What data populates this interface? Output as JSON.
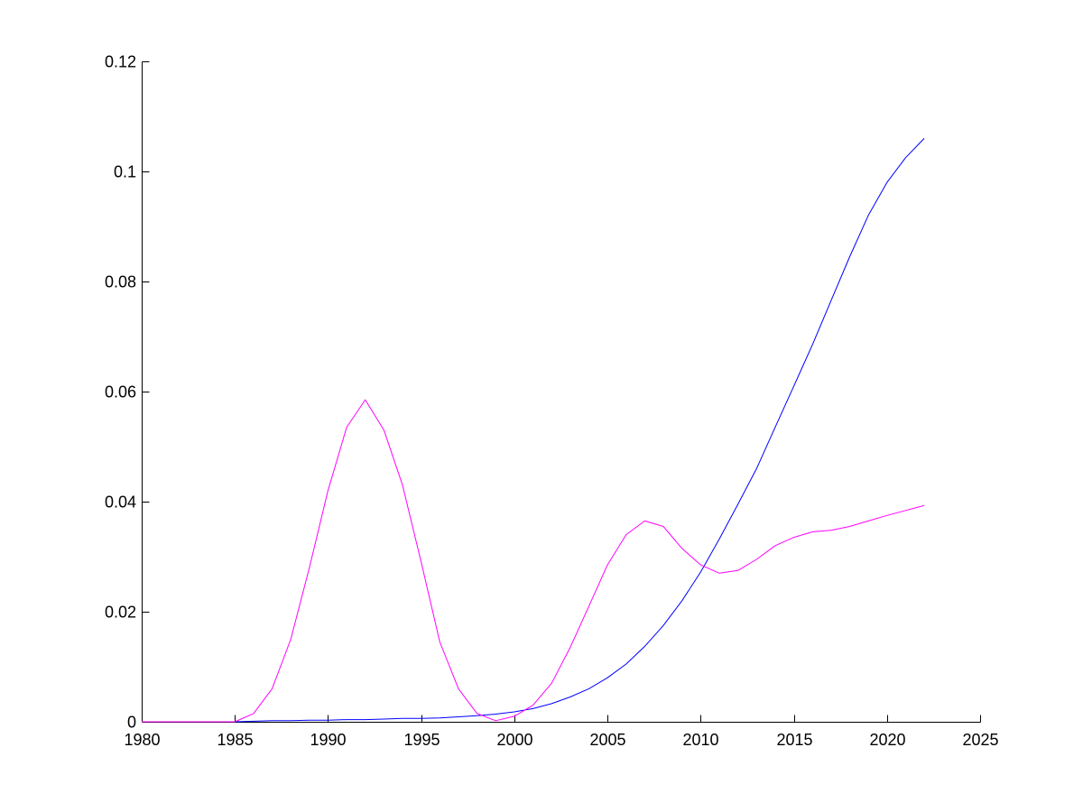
{
  "chart_data": {
    "type": "line",
    "title": "",
    "xlabel": "",
    "ylabel": "",
    "xlim": [
      1980,
      2025
    ],
    "ylim": [
      0,
      0.12
    ],
    "grid": false,
    "x_ticks": [
      "1980",
      "1985",
      "1990",
      "1995",
      "2000",
      "2005",
      "2010",
      "2015",
      "2020",
      "2025"
    ],
    "y_ticks": [
      "0",
      "0.02",
      "0.04",
      "0.06",
      "0.08",
      "0.1",
      "0.12"
    ],
    "x": [
      1980,
      1981,
      1982,
      1983,
      1984,
      1985,
      1986,
      1987,
      1988,
      1989,
      1990,
      1991,
      1992,
      1993,
      1994,
      1995,
      1996,
      1997,
      1998,
      1999,
      2000,
      2001,
      2002,
      2003,
      2004,
      2005,
      2006,
      2007,
      2008,
      2009,
      2010,
      2011,
      2012,
      2013,
      2014,
      2015,
      2016,
      2017,
      2018,
      2019,
      2020,
      2021,
      2022
    ],
    "series": [
      {
        "color": "#0000ff",
        "values": [
          0,
          0,
          0,
          0,
          0,
          0,
          0.0001,
          0.0002,
          0.0002,
          0.0003,
          0.0003,
          0.0004,
          0.0004,
          0.0005,
          0.0006,
          0.0006,
          0.0007,
          0.0009,
          0.0011,
          0.0014,
          0.0018,
          0.0024,
          0.0033,
          0.0045,
          0.006,
          0.008,
          0.0105,
          0.0137,
          0.0175,
          0.022,
          0.0272,
          0.0332,
          0.0395,
          0.046,
          0.0535,
          0.061,
          0.0685,
          0.0765,
          0.0845,
          0.092,
          0.098,
          0.1025,
          0.106
        ]
      },
      {
        "color": "#ff00ff",
        "values": [
          0,
          0,
          0,
          0,
          0,
          0,
          0.0015,
          0.006,
          0.015,
          0.028,
          0.042,
          0.0535,
          0.0585,
          0.053,
          0.043,
          0.029,
          0.0145,
          0.006,
          0.0015,
          0.0002,
          0.001,
          0.003,
          0.007,
          0.0135,
          0.021,
          0.0285,
          0.034,
          0.0365,
          0.0355,
          0.0315,
          0.0285,
          0.027,
          0.0275,
          0.0295,
          0.032,
          0.0335,
          0.0345,
          0.0348,
          0.0355,
          0.0365,
          0.0375,
          0.0384,
          0.0393
        ]
      }
    ]
  }
}
